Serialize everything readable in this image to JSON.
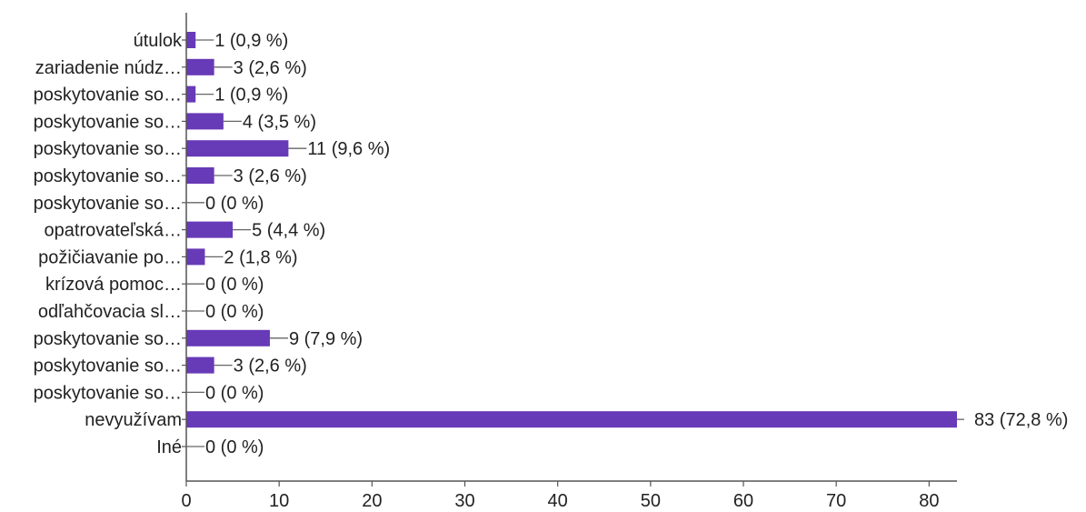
{
  "chart_data": {
    "type": "bar",
    "orientation": "horizontal",
    "categories": [
      "útulok",
      "zariadenie núdz…",
      "poskytovanie so…",
      "poskytovanie so…",
      "poskytovanie so…",
      "poskytovanie so…",
      "poskytovanie so…",
      "opatrovateľská…",
      "požičiavanie po…",
      "krízová pomoc…",
      "odľahčovacia sl…",
      "poskytovanie so…",
      "poskytovanie so…",
      "poskytovanie so…",
      "nevyužívam",
      "Iné"
    ],
    "values": [
      1,
      3,
      1,
      4,
      11,
      3,
      0,
      5,
      2,
      0,
      0,
      9,
      3,
      0,
      83,
      0
    ],
    "value_labels": [
      "1 (0,9 %)",
      "3 (2,6 %)",
      "1 (0,9 %)",
      "4 (3,5 %)",
      "11 (9,6 %)",
      "3 (2,6 %)",
      "0 (0 %)",
      "5 (4,4 %)",
      "2 (1,8 %)",
      "0 (0 %)",
      "0 (0 %)",
      "9 (7,9 %)",
      "3 (2,6 %)",
      "0 (0 %)",
      "83 (72,8 %)",
      "0 (0 %)"
    ],
    "x_ticks": [
      "0",
      "10",
      "20",
      "30",
      "40",
      "50",
      "60",
      "70",
      "80"
    ],
    "xlim": [
      0,
      83
    ],
    "grid": false,
    "bar_color": "#673ab7",
    "axis_color": "#555555",
    "text_color": "#222222"
  }
}
